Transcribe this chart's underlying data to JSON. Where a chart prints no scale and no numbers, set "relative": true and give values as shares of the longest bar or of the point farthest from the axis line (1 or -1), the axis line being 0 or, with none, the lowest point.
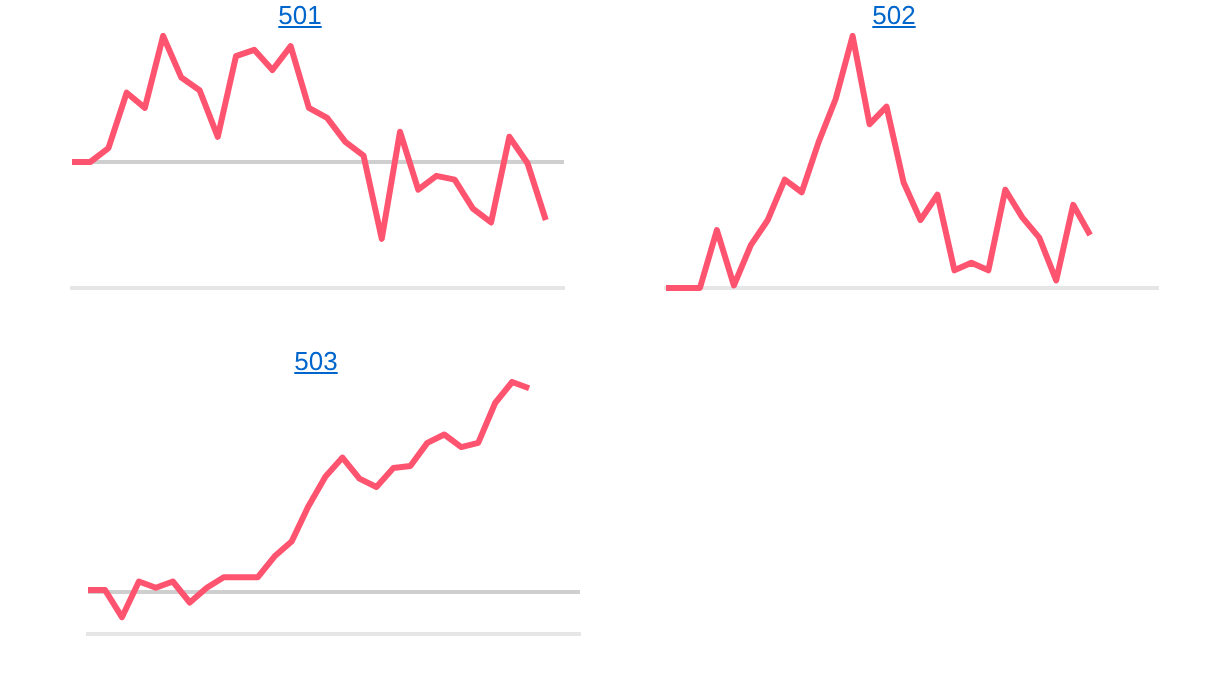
{
  "chart_data": [
    {
      "type": "line",
      "title": "501",
      "relative": true,
      "grid": false,
      "marker": "none",
      "color": "#ff5470",
      "categories": [
        null,
        null,
        null,
        null,
        null,
        null,
        null,
        null,
        null,
        null,
        null,
        null,
        null,
        null,
        null,
        null,
        null,
        null,
        null,
        null,
        null,
        null,
        null,
        null,
        null,
        null,
        null,
        null
      ],
      "values": [
        0,
        0,
        0.11,
        0.55,
        0.43,
        1,
        0.67,
        0.57,
        0.2,
        0.84,
        0.89,
        0.73,
        0.92,
        0.43,
        0.35,
        0.16,
        0.05,
        -0.61,
        0.24,
        -0.22,
        -0.11,
        -0.14,
        -0.37,
        -0.48,
        0.2,
        -0.01,
        -0.46,
        null
      ]
    },
    {
      "type": "line",
      "title": "502",
      "relative": true,
      "grid": false,
      "marker": "none",
      "color": "#ff5470",
      "categories": [
        null,
        null,
        null,
        null,
        null,
        null,
        null,
        null,
        null,
        null,
        null,
        null,
        null,
        null,
        null,
        null,
        null,
        null,
        null,
        null,
        null,
        null,
        null,
        null,
        null,
        null,
        null,
        null,
        null,
        null
      ],
      "values": [
        0,
        0,
        0,
        0.23,
        0.01,
        0.17,
        0.27,
        0.43,
        0.38,
        0.58,
        0.75,
        1,
        0.65,
        0.72,
        0.42,
        0.27,
        0.37,
        0.07,
        0.1,
        0.07,
        0.39,
        0.28,
        0.2,
        0.03,
        0.33,
        0.21,
        null,
        null,
        null,
        null
      ]
    },
    {
      "type": "line",
      "title": "503",
      "relative": true,
      "grid": false,
      "marker": "none",
      "color": "#ff5470",
      "categories": [
        null,
        null,
        null,
        null,
        null,
        null,
        null,
        null,
        null,
        null,
        null,
        null,
        null,
        null,
        null,
        null,
        null,
        null,
        null,
        null,
        null,
        null,
        null,
        null,
        null,
        null,
        null,
        null,
        null,
        null
      ],
      "values": [
        0.01,
        0.01,
        -0.12,
        0.05,
        0.02,
        0.05,
        -0.05,
        0.02,
        0.07,
        0.07,
        0.07,
        0.17,
        0.24,
        0.41,
        0.55,
        0.64,
        0.54,
        0.5,
        0.59,
        0.6,
        0.71,
        0.75,
        0.69,
        0.71,
        0.9,
        1,
        0.97,
        null,
        null,
        null
      ]
    }
  ]
}
